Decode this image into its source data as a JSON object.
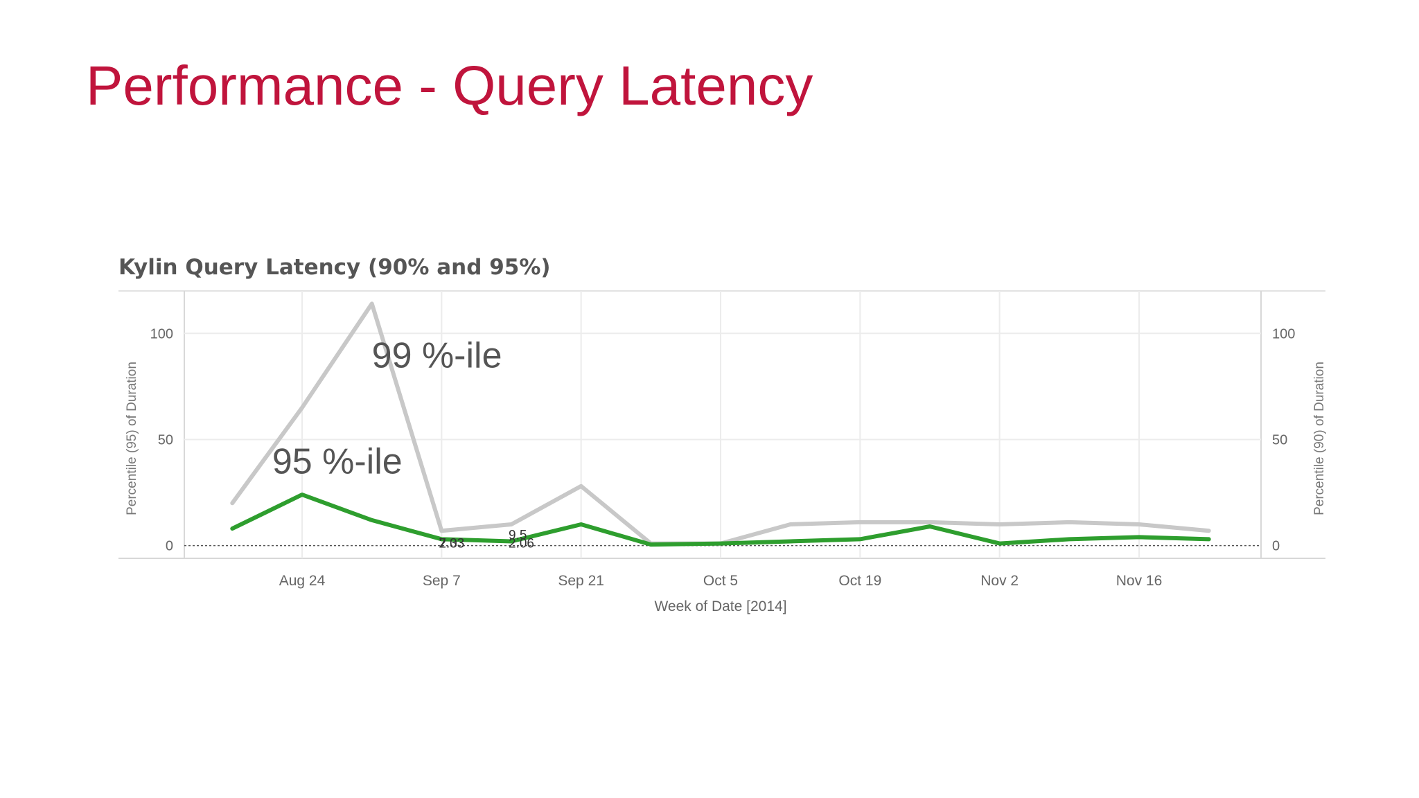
{
  "slide": {
    "title": "Performance - Query Latency"
  },
  "chart_data": {
    "type": "line",
    "title": "Kylin Query Latency (90% and 95%)",
    "xlabel": "Week of Date [2014]",
    "ylabel_left": "Percentile (95) of Duration",
    "ylabel_right": "Percentile (90) of Duration",
    "x": [
      "2014-08-17",
      "2014-08-24",
      "2014-08-31",
      "2014-09-07",
      "2014-09-14",
      "2014-09-21",
      "2014-09-28",
      "2014-10-05",
      "2014-10-12",
      "2014-10-19",
      "2014-10-26",
      "2014-11-02",
      "2014-11-09",
      "2014-11-16",
      "2014-11-23"
    ],
    "x_tick_labels": [
      {
        "x": "2014-08-24",
        "label": "Aug 24"
      },
      {
        "x": "2014-09-07",
        "label": "Sep 7"
      },
      {
        "x": "2014-09-21",
        "label": "Sep 21"
      },
      {
        "x": "2014-10-05",
        "label": "Oct 5"
      },
      {
        "x": "2014-10-19",
        "label": "Oct 19"
      },
      {
        "x": "2014-11-02",
        "label": "Nov 2"
      },
      {
        "x": "2014-11-16",
        "label": "Nov 16"
      }
    ],
    "ylim": [
      -6,
      120
    ],
    "y_ticks": [
      0,
      50,
      100
    ],
    "grid": true,
    "series": [
      {
        "name": "",
        "color": "#c8c8c8",
        "values": [
          20,
          65,
          114,
          7,
          10,
          28,
          1,
          1,
          10,
          11,
          11,
          10,
          11,
          10,
          7
        ]
      },
      {
        "name": "",
        "color": "#2e9e2e",
        "values": [
          8,
          24,
          12,
          3,
          2,
          10,
          0.5,
          1,
          2,
          3,
          9,
          1,
          3,
          4,
          3
        ]
      }
    ],
    "annotations": [
      {
        "text": "99 %-ile",
        "x": "2014-08-31",
        "y": 84,
        "size": "large"
      },
      {
        "text": "95 %-ile",
        "x": "2014-08-21",
        "y": 34,
        "size": "large"
      },
      {
        "text": "2.03",
        "x": "2014-09-07",
        "y": -1,
        "size": "small"
      },
      {
        "text": "7.33",
        "x": "2014-09-07",
        "y": -1,
        "size": "small"
      },
      {
        "text": "9.5",
        "x": "2014-09-14",
        "y": 3,
        "size": "small"
      },
      {
        "text": "2.06",
        "x": "2014-09-14",
        "y": -1,
        "size": "small"
      }
    ]
  }
}
